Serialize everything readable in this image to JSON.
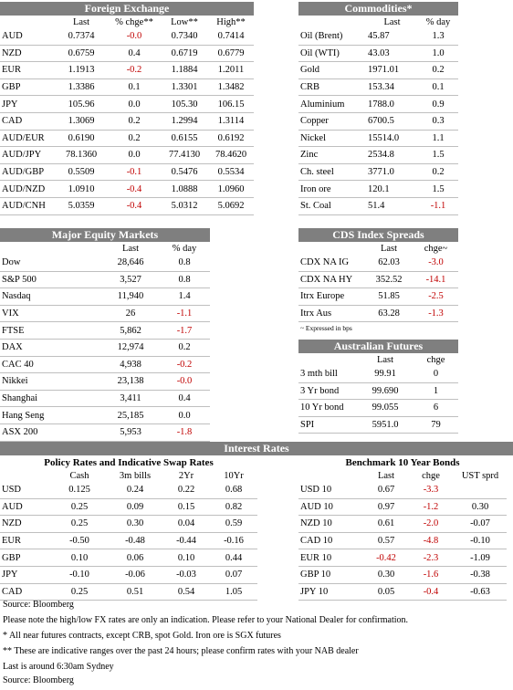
{
  "fx": {
    "title": "Foreign Exchange",
    "cols": [
      "",
      "Last",
      "% chge**",
      "Low**",
      "High**"
    ],
    "rows": [
      [
        "AUD",
        "0.7374",
        "-0.0",
        "0.7340",
        "0.7414"
      ],
      [
        "NZD",
        "0.6759",
        "0.4",
        "0.6719",
        "0.6779"
      ],
      [
        "EUR",
        "1.1913",
        "-0.2",
        "1.1884",
        "1.2011"
      ],
      [
        "GBP",
        "1.3386",
        "0.1",
        "1.3301",
        "1.3482"
      ],
      [
        "JPY",
        "105.96",
        "0.0",
        "105.30",
        "106.15"
      ],
      [
        "CAD",
        "1.3069",
        "0.2",
        "1.2994",
        "1.3114"
      ],
      [
        "AUD/EUR",
        "0.6190",
        "0.2",
        "0.6155",
        "0.6192"
      ],
      [
        "AUD/JPY",
        "78.1360",
        "0.0",
        "77.4130",
        "78.4620"
      ],
      [
        "AUD/GBP",
        "0.5509",
        "-0.1",
        "0.5476",
        "0.5534"
      ],
      [
        "AUD/NZD",
        "1.0910",
        "-0.4",
        "1.0888",
        "1.0960"
      ],
      [
        "AUD/CNH",
        "5.0359",
        "-0.4",
        "5.0312",
        "5.0692"
      ]
    ]
  },
  "commodities": {
    "title": "Commodities*",
    "cols": [
      "",
      "Last",
      "% day"
    ],
    "rows": [
      [
        "Oil (Brent)",
        "45.87",
        "1.3"
      ],
      [
        "Oil (WTI)",
        "43.03",
        "1.0"
      ],
      [
        "Gold",
        "1971.01",
        "0.2"
      ],
      [
        "CRB",
        "153.34",
        "0.1"
      ],
      [
        "Aluminium",
        "1788.0",
        "0.9"
      ],
      [
        "Copper",
        "6700.5",
        "0.3"
      ],
      [
        "Nickel",
        "15514.0",
        "1.1"
      ],
      [
        "Zinc",
        "2534.8",
        "1.5"
      ],
      [
        "Ch. steel",
        "3771.0",
        "0.2"
      ],
      [
        "Iron ore",
        "120.1",
        "1.5"
      ],
      [
        "St. Coal",
        "51.4",
        "-1.1"
      ]
    ]
  },
  "equity": {
    "title": "Major Equity Markets",
    "cols": [
      "",
      "Last",
      "% day"
    ],
    "rows": [
      [
        "Dow",
        "28,646",
        "0.8"
      ],
      [
        "S&P 500",
        "3,527",
        "0.8"
      ],
      [
        "Nasdaq",
        "11,940",
        "1.4"
      ],
      [
        "VIX",
        "26",
        "-1.1"
      ],
      [
        "FTSE",
        "5,862",
        "-1.7"
      ],
      [
        "DAX",
        "12,974",
        "0.2"
      ],
      [
        "CAC 40",
        "4,938",
        "-0.2"
      ],
      [
        "Nikkei",
        "23,138",
        "-0.0"
      ],
      [
        "Shanghai",
        "3,411",
        "0.4"
      ],
      [
        "Hang Seng",
        "25,185",
        "0.0"
      ],
      [
        "ASX 200",
        "5,953",
        "-1.8"
      ]
    ]
  },
  "cds": {
    "title": "CDS Index Spreads",
    "cols": [
      "",
      "Last",
      "chge~"
    ],
    "rows": [
      [
        "CDX NA IG",
        "62.03",
        "-3.0"
      ],
      [
        "CDX NA HY",
        "352.52",
        "-14.1"
      ],
      [
        "Itrx Europe",
        "51.85",
        "-2.5"
      ],
      [
        "Itrx Aus",
        "63.28",
        "-1.3"
      ]
    ],
    "note": "~ Expressed in bps"
  },
  "futures": {
    "title": "Australian Futures",
    "cols": [
      "",
      "Last",
      "chge"
    ],
    "rows": [
      [
        "3 mth bill",
        "99.91",
        "0"
      ],
      [
        "3 Yr bond",
        "99.690",
        "1"
      ],
      [
        "10 Yr bond",
        "99.055",
        "6"
      ],
      [
        "SPI",
        "5951.0",
        "79"
      ]
    ]
  },
  "interest": {
    "title": "Interest Rates",
    "policy_title": "Policy Rates and Indicative Swap Rates",
    "policy_cols": [
      "",
      "Cash",
      "3m bills",
      "2Yr",
      "10Yr"
    ],
    "policy_rows": [
      [
        "USD",
        "0.125",
        "0.24",
        "0.22",
        "0.68"
      ],
      [
        "AUD",
        "0.25",
        "0.09",
        "0.15",
        "0.82"
      ],
      [
        "NZD",
        "0.25",
        "0.30",
        "0.04",
        "0.59"
      ],
      [
        "EUR",
        "-0.50",
        "-0.48",
        "-0.44",
        "-0.16"
      ],
      [
        "GBP",
        "0.10",
        "0.06",
        "0.10",
        "0.44"
      ],
      [
        "JPY",
        "-0.10",
        "-0.06",
        "-0.03",
        "0.07"
      ],
      [
        "CAD",
        "0.25",
        "0.51",
        "0.54",
        "1.05"
      ]
    ],
    "bonds_title": "Benchmark 10 Year Bonds",
    "bonds_cols": [
      "",
      "Last",
      "chge",
      "UST sprd"
    ],
    "bonds_rows": [
      [
        "USD 10",
        "0.67",
        "-3.3",
        ""
      ],
      [
        "AUD 10",
        "0.97",
        "-1.2",
        "0.30"
      ],
      [
        "NZD 10",
        "0.61",
        "-2.0",
        "-0.07"
      ],
      [
        "CAD 10",
        "0.57",
        "-4.8",
        "-0.10"
      ],
      [
        "EUR 10",
        "-0.42",
        "-2.3",
        "-1.09"
      ],
      [
        "GBP 10",
        "0.30",
        "-1.6",
        "-0.38"
      ],
      [
        "JPY 10",
        "0.05",
        "-0.4",
        "-0.63"
      ]
    ]
  },
  "footnotes": {
    "source1": "Source: Bloomberg",
    "note1": "Please note the high/low FX rates are only an indication. Please refer to your National Dealer for confirmation.",
    "note2": "* All near futures contracts, except CRB, spot Gold.  Iron ore is SGX futures",
    "note3": "** These are indicative ranges over the past 24 hours; please confirm rates with your NAB dealer",
    "note4": "Last is around 6:30am Sydney",
    "source2": "Source: Bloomberg"
  },
  "colors": {
    "header_bg": "#7f7f7f",
    "negative": "#c00000"
  }
}
